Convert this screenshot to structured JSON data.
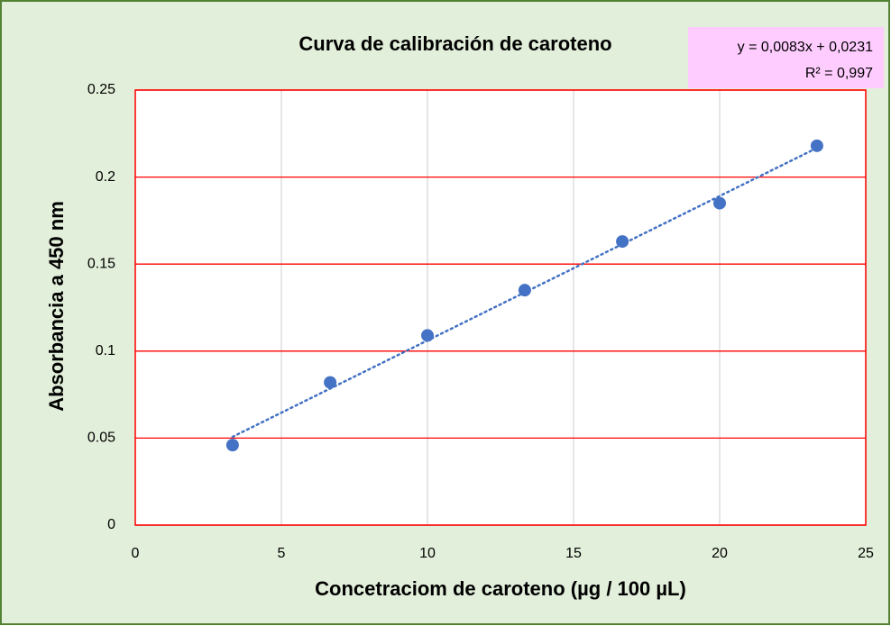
{
  "chart_data": {
    "type": "scatter",
    "title": "Curva de calibración de caroteno",
    "xlabel": "Concetraciom de caroteno (µg / 100 µL)",
    "ylabel": "Absorbancia  a 450 nm",
    "series": [
      {
        "name": "Absorbancia",
        "color": "#4472c4",
        "x": [
          3.33,
          6.67,
          10,
          13.33,
          16.67,
          20,
          23.33
        ],
        "values": [
          0.046,
          0.082,
          0.109,
          0.135,
          0.163,
          0.185,
          0.218
        ]
      }
    ],
    "trendline": {
      "slope": 0.0083,
      "intercept": 0.0231,
      "color": "#4472c4",
      "equation": "y = 0,0083x + 0,0231",
      "r2": "R² = 0,997"
    },
    "xlim": [
      0,
      25
    ],
    "xticks": [
      0,
      5,
      10,
      15,
      20,
      25
    ],
    "ylim": [
      0,
      0.25
    ],
    "yticks": [
      0,
      0.05,
      0.1,
      0.15,
      0.2,
      0.25
    ],
    "grid": true,
    "xgrid_color": "#d9d9d9",
    "ygrid_color": "#ff0000"
  }
}
